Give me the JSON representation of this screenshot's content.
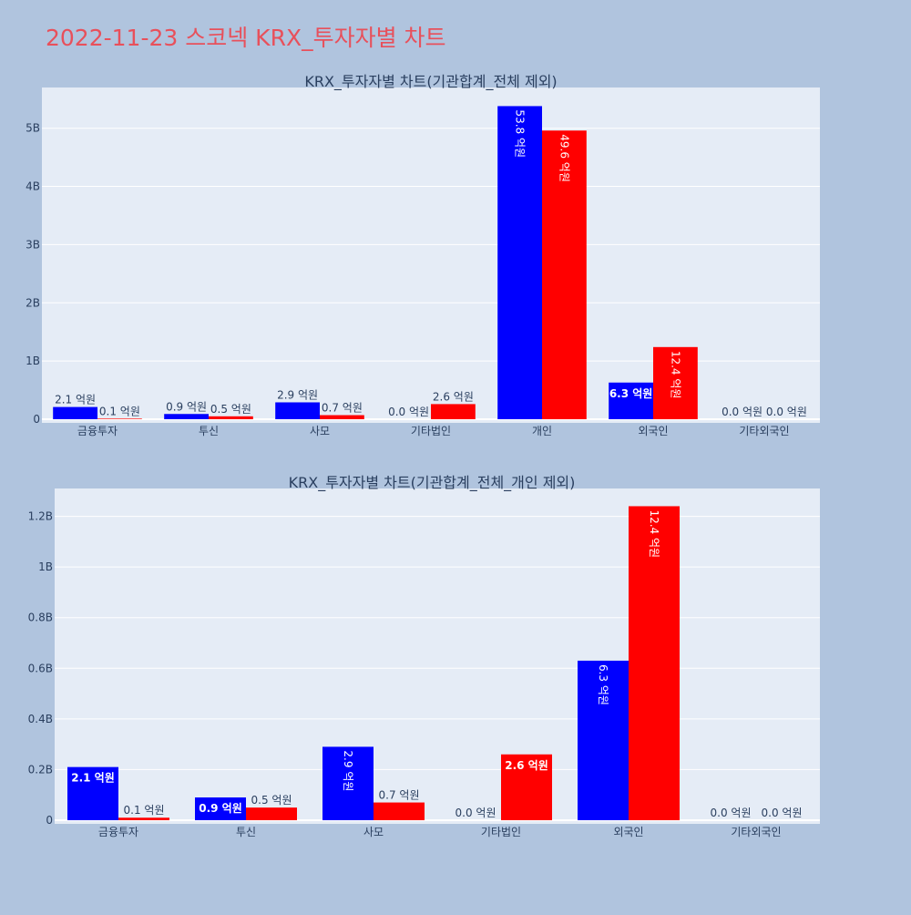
{
  "page_title": "2022-11-23 스코넥 KRX_투자자별 차트",
  "colors": {
    "page_bg": "#b0c4de",
    "plot_bg": "#e5ecf6",
    "title": "#e8505b",
    "text": "#2a3f5f",
    "series_blue": "#0000ff",
    "series_red": "#ff0000"
  },
  "chart_data": [
    {
      "type": "bar",
      "title": "KRX_투자자별 차트(기관합계_전체 제외)",
      "categories": [
        "금융투자",
        "투신",
        "사모",
        "기타법인",
        "개인",
        "외국인",
        "기타외국인"
      ],
      "series": [
        {
          "color": "#0000ff",
          "values": [
            210000000,
            90000000,
            290000000,
            0,
            5380000000,
            630000000,
            0
          ],
          "labels": [
            "2.1 억원",
            "0.9 억원",
            "2.9 억원",
            "0.0 억원",
            "53.8 억원",
            "6.3 억원",
            "0.0 억원"
          ]
        },
        {
          "color": "#ff0000",
          "values": [
            10000000,
            50000000,
            70000000,
            260000000,
            4960000000,
            1240000000,
            0
          ],
          "labels": [
            "0.1 억원",
            "0.5 억원",
            "0.7 억원",
            "2.6 억원",
            "49.6 억원",
            "12.4 억원",
            "0.0 억원"
          ]
        }
      ],
      "ylim": [
        0,
        5700000000
      ],
      "yticks": [
        0,
        1000000000,
        2000000000,
        3000000000,
        4000000000,
        5000000000
      ],
      "ytick_labels": [
        "0",
        "1B",
        "2B",
        "3B",
        "4B",
        "5B"
      ],
      "grid": true
    },
    {
      "type": "bar",
      "title": "KRX_투자자별 차트(기관합계_전체_개인 제외)",
      "categories": [
        "금융투자",
        "투신",
        "사모",
        "기타법인",
        "외국인",
        "기타외국인"
      ],
      "series": [
        {
          "color": "#0000ff",
          "values": [
            210000000,
            90000000,
            290000000,
            0,
            630000000,
            0
          ],
          "labels": [
            "2.1 억원",
            "0.9 억원",
            "2.9 억원",
            "0.0 억원",
            "6.3 억원",
            "0.0 억원"
          ]
        },
        {
          "color": "#ff0000",
          "values": [
            10000000,
            50000000,
            70000000,
            260000000,
            1240000000,
            0
          ],
          "labels": [
            "0.1 억원",
            "0.5 억원",
            "0.7 억원",
            "2.6 억원",
            "12.4 억원",
            "0.0 억원"
          ]
        }
      ],
      "ylim": [
        0,
        1310000000
      ],
      "yticks": [
        0,
        200000000,
        400000000,
        600000000,
        800000000,
        1000000000,
        1200000000
      ],
      "ytick_labels": [
        "0",
        "0.2B",
        "0.4B",
        "0.6B",
        "0.8B",
        "1B",
        "1.2B"
      ],
      "grid": true
    }
  ]
}
